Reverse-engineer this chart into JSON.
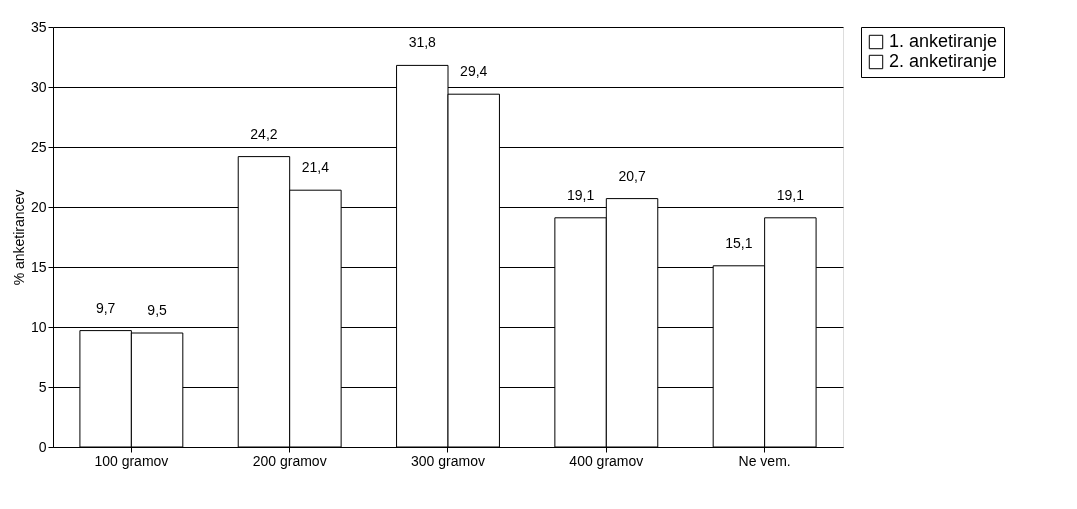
{
  "chart_data": {
    "type": "bar",
    "ylabel": "% anketirancev",
    "categories": [
      "100 gramov",
      "200 gramov",
      "300 gramov",
      "400 gramov",
      "Ne vem."
    ],
    "series": [
      {
        "name": "1. anketiranje",
        "color": "#ffffff",
        "values": [
          9.7,
          24.2,
          31.8,
          19.1,
          15.1
        ],
        "value_labels": [
          "9,7",
          "24,2",
          "31,8",
          "19,1",
          "15,1"
        ]
      },
      {
        "name": "2. anketiranje",
        "color": "#ffffff",
        "values": [
          9.5,
          21.4,
          29.4,
          20.7,
          19.1
        ],
        "value_labels": [
          "9,5",
          "21,4",
          "29,4",
          "20,7",
          "19,1"
        ]
      }
    ],
    "ylim": [
      0,
      35
    ],
    "yticks": [
      0,
      5,
      10,
      15,
      20,
      25,
      30,
      35
    ],
    "grid": "y",
    "legend": "right"
  }
}
